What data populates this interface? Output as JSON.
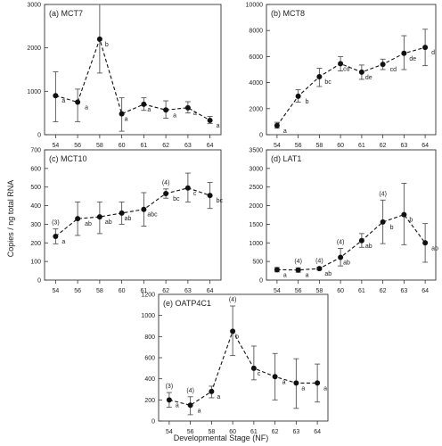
{
  "y_axis_label": "Copies / ng total RNA",
  "x_axis_label": "Developmental Stage (NF)",
  "chart_data": [
    {
      "type": "line",
      "title": "(a) MCT7",
      "x": [
        "54",
        "56",
        "58",
        "60",
        "61",
        "62",
        "63",
        "64"
      ],
      "y_ticks": [
        "0",
        "1000",
        "2000",
        "3000"
      ],
      "ylim": [
        0,
        3000
      ],
      "values": [
        900,
        750,
        2200,
        480,
        700,
        570,
        620,
        330
      ],
      "err_upper": [
        1450,
        1050,
        3000,
        850,
        850,
        780,
        760,
        420
      ],
      "err_lower": [
        300,
        300,
        1420,
        80,
        560,
        380,
        500,
        260
      ],
      "letters": [
        "a",
        "a",
        "b",
        "a",
        "a",
        "a",
        "a",
        "a"
      ],
      "n_labels": [
        "",
        "",
        "",
        "",
        "",
        "",
        "",
        ""
      ]
    },
    {
      "type": "line",
      "title": "(b) MCT8",
      "x": [
        "54",
        "56",
        "58",
        "60",
        "61",
        "62",
        "63",
        "64"
      ],
      "y_ticks": [
        "0",
        "2000",
        "4000",
        "6000",
        "8000",
        "10000"
      ],
      "ylim": [
        0,
        10000
      ],
      "values": [
        700,
        2950,
        4450,
        5450,
        4800,
        5400,
        6250,
        6700
      ],
      "err_upper": [
        950,
        3450,
        5100,
        6000,
        5350,
        5800,
        7600,
        8100
      ],
      "err_lower": [
        500,
        2500,
        3700,
        4900,
        4250,
        5000,
        5000,
        5300
      ],
      "letters": [
        "a",
        "b",
        "bc",
        "cd",
        "de",
        "cd",
        "de",
        "d"
      ],
      "n_labels": [
        "",
        "",
        "",
        "",
        "",
        "",
        "",
        ""
      ]
    },
    {
      "type": "line",
      "title": "(c) MCT10",
      "x": [
        "54",
        "56",
        "58",
        "60",
        "61",
        "62",
        "63",
        "64"
      ],
      "y_ticks": [
        "0",
        "100",
        "200",
        "300",
        "400",
        "500",
        "600",
        "700"
      ],
      "ylim": [
        0,
        700
      ],
      "values": [
        235,
        330,
        340,
        360,
        380,
        465,
        495,
        455
      ],
      "err_upper": [
        275,
        420,
        420,
        420,
        470,
        490,
        575,
        525
      ],
      "err_lower": [
        195,
        240,
        250,
        300,
        290,
        440,
        420,
        385
      ],
      "letters": [
        "a",
        "ab",
        "ab",
        "ab",
        "abc",
        "bc",
        "c",
        "bc"
      ],
      "n_labels": [
        "(3)",
        "",
        "",
        "",
        "",
        "(4)",
        "",
        ""
      ]
    },
    {
      "type": "line",
      "title": "(d) LAT1",
      "x": [
        "54",
        "56",
        "58",
        "60",
        "61",
        "62",
        "63",
        "64"
      ],
      "y_ticks": [
        "0",
        "500",
        "1000",
        "1500",
        "2000",
        "2500",
        "3000",
        "3500"
      ],
      "ylim": [
        0,
        3500
      ],
      "values": [
        280,
        270,
        310,
        610,
        1060,
        1560,
        1760,
        1000
      ],
      "err_upper": [
        340,
        330,
        350,
        850,
        1250,
        2150,
        2600,
        1520
      ],
      "err_lower": [
        220,
        210,
        270,
        380,
        880,
        980,
        950,
        480
      ],
      "letters": [
        "a",
        "a",
        "ab",
        "ab",
        "ab",
        "b",
        "b",
        "ab"
      ],
      "n_labels": [
        "",
        "(4)",
        "(4)",
        "(4)",
        "",
        "(4)",
        "",
        ""
      ]
    },
    {
      "type": "line",
      "title": "(e) OATP4C1",
      "x": [
        "54",
        "56",
        "58",
        "60",
        "61",
        "62",
        "63",
        "64"
      ],
      "y_ticks": [
        "0",
        "200",
        "400",
        "600",
        "800",
        "1000",
        "1200"
      ],
      "ylim": [
        0,
        1200
      ],
      "values": [
        200,
        150,
        280,
        850,
        500,
        420,
        360,
        360
      ],
      "err_upper": [
        270,
        230,
        330,
        1090,
        710,
        640,
        590,
        540
      ],
      "err_lower": [
        130,
        60,
        220,
        620,
        390,
        200,
        120,
        180
      ],
      "letters": [
        "a",
        "a",
        "a",
        "b",
        "c",
        "a",
        "a",
        "a"
      ],
      "n_labels": [
        "(3)",
        "(4)",
        "",
        "(4)",
        "",
        "",
        "",
        ""
      ]
    }
  ]
}
